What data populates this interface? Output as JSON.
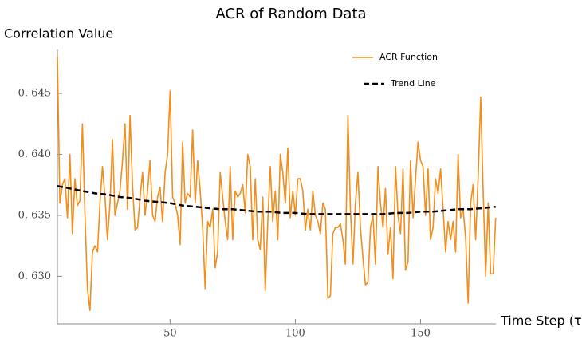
{
  "chart_data": {
    "type": "line",
    "title": "ACR of Random Data",
    "y_label": "Correlation Value",
    "x_label": "Time Step (τ)",
    "xlim": [
      5,
      182
    ],
    "xticks": [
      50,
      100,
      150
    ],
    "ylim": [
      0.6261,
      0.6486
    ],
    "yticks": [
      {
        "value": 0.63,
        "label": "0. 630"
      },
      {
        "value": 0.635,
        "label": "0. 635"
      },
      {
        "value": 0.64,
        "label": "0. 640"
      },
      {
        "value": 0.645,
        "label": "0. 645"
      }
    ],
    "legend": "top-right",
    "series": [
      {
        "name": "ACR Function",
        "color": "#f28e1c",
        "dashed": false,
        "x": [
          5,
          6,
          7,
          8,
          9,
          10,
          11,
          12,
          13,
          14,
          15,
          16,
          17,
          18,
          19,
          20,
          21,
          22,
          23,
          24,
          25,
          26,
          27,
          28,
          29,
          30,
          31,
          32,
          33,
          34,
          35,
          36,
          37,
          38,
          39,
          40,
          41,
          42,
          43,
          44,
          45,
          46,
          47,
          48,
          49,
          50,
          51,
          52,
          53,
          54,
          55,
          56,
          57,
          58,
          59,
          60,
          61,
          62,
          63,
          64,
          65,
          66,
          67,
          68,
          69,
          70,
          71,
          72,
          73,
          74,
          75,
          76,
          77,
          78,
          79,
          80,
          81,
          82,
          83,
          84,
          85,
          86,
          87,
          88,
          89,
          90,
          91,
          92,
          93,
          94,
          95,
          96,
          97,
          98,
          99,
          100,
          101,
          102,
          103,
          104,
          105,
          106,
          107,
          108,
          109,
          110,
          111,
          112,
          113,
          114,
          115,
          116,
          117,
          118,
          119,
          120,
          121,
          122,
          123,
          124,
          125,
          126,
          127,
          128,
          129,
          130,
          131,
          132,
          133,
          134,
          135,
          136,
          137,
          138,
          139,
          140,
          141,
          142,
          143,
          144,
          145,
          146,
          147,
          148,
          149,
          150,
          151,
          152,
          153,
          154,
          155,
          156,
          157,
          158,
          159,
          160,
          161,
          162,
          163,
          164,
          165,
          166,
          167,
          168,
          169,
          170,
          171,
          172,
          173,
          174,
          175,
          176,
          177,
          178,
          179,
          180
        ],
        "values": [
          0.648,
          0.636,
          0.6375,
          0.638,
          0.6348,
          0.64,
          0.6335,
          0.638,
          0.6358,
          0.6362,
          0.6425,
          0.635,
          0.629,
          0.6272,
          0.632,
          0.6325,
          0.632,
          0.636,
          0.639,
          0.6365,
          0.633,
          0.636,
          0.6412,
          0.635,
          0.636,
          0.637,
          0.6395,
          0.6425,
          0.6355,
          0.6432,
          0.6375,
          0.6338,
          0.634,
          0.6365,
          0.6385,
          0.635,
          0.637,
          0.6395,
          0.635,
          0.6345,
          0.6365,
          0.6373,
          0.6345,
          0.6385,
          0.64,
          0.6452,
          0.6365,
          0.636,
          0.635,
          0.6326,
          0.641,
          0.636,
          0.6368,
          0.6365,
          0.642,
          0.636,
          0.6395,
          0.637,
          0.634,
          0.629,
          0.6345,
          0.634,
          0.6355,
          0.6307,
          0.632,
          0.6385,
          0.6365,
          0.6345,
          0.633,
          0.639,
          0.633,
          0.637,
          0.6365,
          0.6368,
          0.6375,
          0.6352,
          0.64,
          0.639,
          0.633,
          0.638,
          0.633,
          0.6322,
          0.6365,
          0.6288,
          0.6345,
          0.639,
          0.6345,
          0.637,
          0.633,
          0.64,
          0.6385,
          0.636,
          0.6405,
          0.6348,
          0.637,
          0.635,
          0.638,
          0.638,
          0.637,
          0.6338,
          0.6355,
          0.6338,
          0.637,
          0.635,
          0.6345,
          0.6335,
          0.636,
          0.6355,
          0.6282,
          0.6284,
          0.6335,
          0.634,
          0.634,
          0.6343,
          0.633,
          0.631,
          0.6432,
          0.6355,
          0.631,
          0.636,
          0.6385,
          0.634,
          0.6315,
          0.6293,
          0.6295,
          0.634,
          0.635,
          0.631,
          0.639,
          0.636,
          0.634,
          0.6372,
          0.6318,
          0.634,
          0.6298,
          0.639,
          0.635,
          0.6335,
          0.6388,
          0.6305,
          0.6312,
          0.6395,
          0.6348,
          0.638,
          0.641,
          0.6395,
          0.639,
          0.635,
          0.6388,
          0.633,
          0.634,
          0.638,
          0.6368,
          0.6388,
          0.6355,
          0.632,
          0.6345,
          0.633,
          0.6345,
          0.632,
          0.64,
          0.6348,
          0.6355,
          0.6332,
          0.6278,
          0.636,
          0.6375,
          0.633,
          0.638,
          0.6447,
          0.637,
          0.63,
          0.636,
          0.6302,
          0.6302,
          0.6348
        ]
      },
      {
        "name": "Trend Line",
        "color": "#000000",
        "dashed": true,
        "x": [
          5,
          10,
          15,
          20,
          25,
          30,
          35,
          40,
          45,
          50,
          55,
          60,
          65,
          70,
          75,
          80,
          85,
          90,
          95,
          100,
          105,
          110,
          115,
          120,
          125,
          130,
          135,
          140,
          145,
          150,
          155,
          160,
          165,
          170,
          175,
          180
        ],
        "values": [
          0.6374,
          0.6372,
          0.637,
          0.6368,
          0.6367,
          0.6365,
          0.6364,
          0.6362,
          0.6361,
          0.636,
          0.6358,
          0.6357,
          0.6356,
          0.6355,
          0.6355,
          0.6354,
          0.6353,
          0.6353,
          0.6352,
          0.6352,
          0.6351,
          0.6351,
          0.6351,
          0.6351,
          0.6351,
          0.6351,
          0.6351,
          0.6352,
          0.6352,
          0.6353,
          0.6353,
          0.6354,
          0.6355,
          0.6355,
          0.6356,
          0.6357
        ]
      }
    ]
  }
}
